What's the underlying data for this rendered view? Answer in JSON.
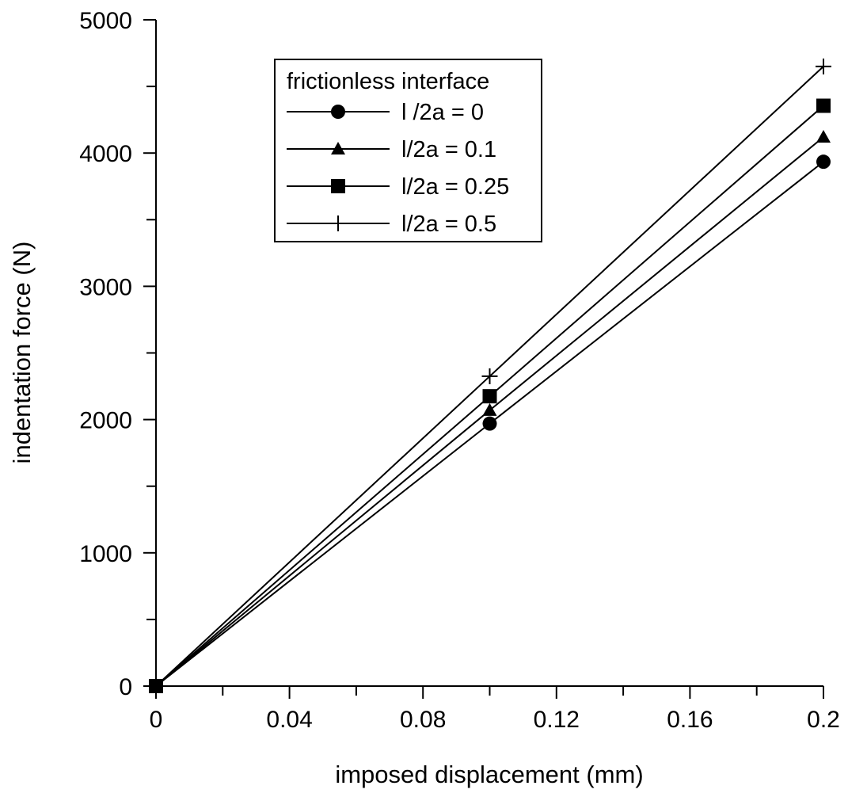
{
  "chart_data": {
    "type": "line",
    "title": "",
    "xlabel": "imposed displacement (mm)",
    "ylabel": "indentation force (N)",
    "xlim": [
      0,
      0.2
    ],
    "ylim": [
      0,
      5000
    ],
    "x_ticks": [
      "0",
      "0.04",
      "0.08",
      "0.12",
      "0.16",
      "0.2"
    ],
    "y_ticks": [
      "0",
      "1000",
      "2000",
      "3000",
      "4000",
      "5000"
    ],
    "grid": false,
    "legend": {
      "title": "frictionless interface",
      "position": "top-center"
    },
    "x": [
      0,
      0.1,
      0.2
    ],
    "series": [
      {
        "name": "l /2a = 0",
        "marker": "circle",
        "values": [
          0,
          1970,
          3935
        ]
      },
      {
        "name": "l/2a = 0.1",
        "marker": "triangle",
        "values": [
          0,
          2070,
          4120
        ]
      },
      {
        "name": "l/2a = 0.25",
        "marker": "square",
        "values": [
          0,
          2175,
          4355
        ]
      },
      {
        "name": "l/2a = 0.5",
        "marker": "plus",
        "values": [
          0,
          2325,
          4650
        ]
      }
    ]
  }
}
